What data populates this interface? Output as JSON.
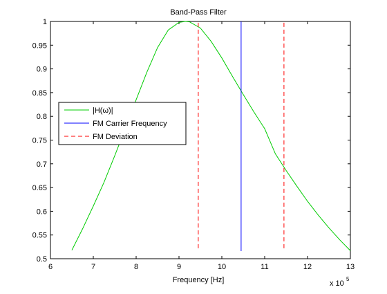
{
  "chart_data": {
    "type": "line",
    "title": "Band-Pass Filter",
    "xlabel": "Frequency [Hz]",
    "ylabel": "",
    "x_multiplier_label": "x 10",
    "x_multiplier_exponent": "5",
    "x_scale": 100000,
    "xlim": [
      600000,
      1300000
    ],
    "ylim": [
      0.5,
      1.0
    ],
    "x_ticks": [
      600000,
      700000,
      800000,
      900000,
      1000000,
      1100000,
      1200000,
      1300000
    ],
    "x_tick_labels": [
      "6",
      "7",
      "8",
      "9",
      "10",
      "11",
      "12",
      "13"
    ],
    "y_ticks": [
      0.5,
      0.55,
      0.6,
      0.65,
      0.7,
      0.75,
      0.8,
      0.85,
      0.9,
      0.95,
      1.0
    ],
    "y_tick_labels": [
      "0.5",
      "0.55",
      "0.6",
      "0.65",
      "0.7",
      "0.75",
      "0.8",
      "0.85",
      "0.9",
      "0.95",
      "1"
    ],
    "grid": false,
    "legend_position": "middle-left",
    "series": [
      {
        "name": "|H(ω)|",
        "color": "#00cc00",
        "style": "solid",
        "x": [
          650000,
          675000,
          700000,
          725000,
          750000,
          775000,
          800000,
          825000,
          850000,
          875000,
          900000,
          915000,
          925000,
          950000,
          975000,
          1000000,
          1025000,
          1050000,
          1075000,
          1100000,
          1125000,
          1150000,
          1175000,
          1200000,
          1225000,
          1250000,
          1275000,
          1300000
        ],
        "y": [
          0.518,
          0.563,
          0.611,
          0.661,
          0.717,
          0.775,
          0.835,
          0.893,
          0.945,
          0.982,
          0.998,
          1.0,
          0.999,
          0.986,
          0.958,
          0.923,
          0.884,
          0.846,
          0.809,
          0.774,
          0.721,
          0.686,
          0.653,
          0.621,
          0.592,
          0.565,
          0.54,
          0.517
        ]
      },
      {
        "name": "FM Carrier Frequency",
        "color": "#0000ff",
        "style": "solid",
        "x": [
          1045000,
          1045000
        ],
        "y": [
          0.516,
          1.0
        ]
      },
      {
        "name": "FM Deviation",
        "color": "#ff0000",
        "style": "dashed",
        "x": [
          945000,
          945000
        ],
        "y": [
          0.522,
          1.0
        ]
      },
      {
        "name": "FM Deviation",
        "color": "#ff0000",
        "style": "dashed",
        "x": [
          1145000,
          1145000
        ],
        "y": [
          0.522,
          1.0
        ]
      }
    ],
    "legend_entries": [
      {
        "label": "|H(ω)|",
        "color": "#00cc00",
        "style": "solid"
      },
      {
        "label": "FM Carrier Frequency",
        "color": "#0000ff",
        "style": "solid"
      },
      {
        "label": "FM Deviation",
        "color": "#ff0000",
        "style": "dashed"
      }
    ]
  }
}
